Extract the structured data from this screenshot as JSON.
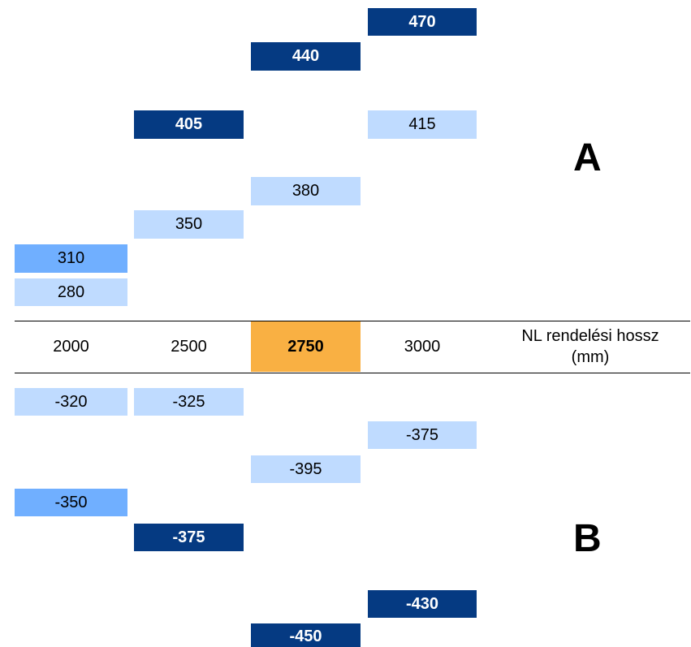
{
  "lengths": [
    "2000",
    "2500",
    "2750",
    "3000"
  ],
  "length_axis_label": "NL rendelési hossz (mm)",
  "section_a": "A",
  "section_b": "B",
  "values_a": {
    "2000": [
      "310",
      "280"
    ],
    "2500": [
      "405",
      "350"
    ],
    "2750": [
      "440",
      "380"
    ],
    "3000": [
      "470",
      "415"
    ]
  },
  "values_b": {
    "2000": [
      "-320",
      "-350"
    ],
    "2500": [
      "-325",
      "-375"
    ],
    "2750": [
      "-395",
      "-450"
    ],
    "3000": [
      "-375",
      "-430"
    ]
  },
  "colors": {
    "light": "#bfdbff",
    "medium": "#70afff",
    "dark": "#053a82",
    "highlight": "#f9b043"
  }
}
